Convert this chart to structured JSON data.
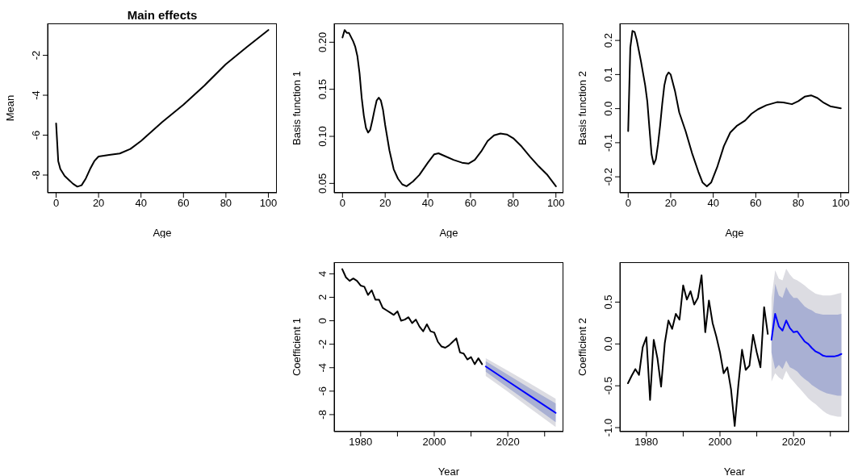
{
  "chart_data": [
    {
      "type": "line",
      "title": "Main effects",
      "xlabel": "Age",
      "ylabel": "Mean",
      "xlim": [
        -4,
        104
      ],
      "ylim": [
        -8.89,
        -0.4
      ],
      "xticks": [
        0,
        20,
        40,
        60,
        80,
        100
      ],
      "yticks": [
        -8,
        -6,
        -4,
        -2
      ],
      "x": [
        0,
        1,
        2,
        4,
        6,
        8,
        10,
        12,
        14,
        16,
        18,
        20,
        25,
        30,
        35,
        40,
        50,
        60,
        70,
        80,
        90,
        100
      ],
      "series": [
        {
          "color": "#000000",
          "values": [
            -5.41,
            -7.3,
            -7.7,
            -8.04,
            -8.24,
            -8.44,
            -8.58,
            -8.51,
            -8.17,
            -7.7,
            -7.3,
            -7.07,
            -6.99,
            -6.92,
            -6.69,
            -6.29,
            -5.34,
            -4.47,
            -3.5,
            -2.44,
            -1.57,
            -0.73
          ]
        }
      ]
    },
    {
      "type": "line",
      "xlabel": "Age",
      "ylabel": "Basis function 1",
      "xlim": [
        -3.9,
        103.5
      ],
      "ylim": [
        0.04,
        0.22
      ],
      "xticks": [
        0,
        20,
        40,
        60,
        80,
        100
      ],
      "yticks": [
        {
          "value": 0.05,
          "label": "0.05"
        },
        {
          "value": 0.1,
          "label": "0.10"
        },
        {
          "value": 0.15,
          "label": "0.15"
        },
        {
          "value": 0.2,
          "label": "0.20"
        }
      ],
      "x": [
        0,
        1,
        2,
        3,
        5,
        6,
        7,
        8,
        9,
        10,
        11,
        12,
        13,
        14,
        15,
        16,
        17,
        18,
        19,
        20,
        22,
        24,
        26,
        28,
        30,
        33,
        36,
        40,
        43,
        45,
        48,
        52,
        56,
        59,
        62,
        65,
        68,
        71,
        74,
        77,
        80,
        84,
        88,
        92,
        96,
        100
      ],
      "series": [
        {
          "color": "#000000",
          "values": [
            0.205,
            0.213,
            0.21,
            0.21,
            0.201,
            0.195,
            0.185,
            0.167,
            0.141,
            0.122,
            0.109,
            0.104,
            0.107,
            0.117,
            0.128,
            0.138,
            0.141,
            0.138,
            0.128,
            0.112,
            0.085,
            0.065,
            0.055,
            0.049,
            0.047,
            0.052,
            0.059,
            0.072,
            0.081,
            0.082,
            0.079,
            0.075,
            0.072,
            0.071,
            0.075,
            0.084,
            0.095,
            0.101,
            0.103,
            0.102,
            0.098,
            0.089,
            0.078,
            0.068,
            0.059,
            0.047
          ]
        }
      ]
    },
    {
      "type": "line",
      "xlabel": "Age",
      "ylabel": "Basis function 2",
      "xlim": [
        -3.9,
        103.9
      ],
      "ylim": [
        -0.247,
        0.25
      ],
      "xticks": [
        0,
        20,
        40,
        60,
        80,
        100
      ],
      "yticks": [
        {
          "value": -0.2,
          "label": "-0.2"
        },
        {
          "value": -0.1,
          "label": "-0.1"
        },
        {
          "value": 0,
          "label": "0.0"
        },
        {
          "value": 0.1,
          "label": "0.1"
        },
        {
          "value": 0.2,
          "label": "0.2"
        }
      ],
      "x": [
        0,
        1,
        2,
        3,
        4,
        6,
        8,
        9,
        10,
        11,
        12,
        13,
        14,
        15,
        16,
        17,
        18,
        19,
        20,
        22,
        24,
        27,
        30,
        33,
        35,
        37,
        39,
        42,
        45,
        48,
        51,
        55,
        58,
        61,
        65,
        70,
        73,
        77,
        80,
        83,
        86,
        89,
        92,
        95,
        100
      ],
      "series": [
        {
          "color": "#000000",
          "values": [
            -0.066,
            0.179,
            0.228,
            0.225,
            0.202,
            0.139,
            0.068,
            0.021,
            -0.058,
            -0.134,
            -0.163,
            -0.149,
            -0.106,
            -0.051,
            0.013,
            0.068,
            0.096,
            0.106,
            0.1,
            0.052,
            -0.011,
            -0.066,
            -0.13,
            -0.185,
            -0.217,
            -0.228,
            -0.217,
            -0.169,
            -0.11,
            -0.07,
            -0.051,
            -0.035,
            -0.015,
            -0.002,
            0.01,
            0.019,
            0.018,
            0.013,
            0.022,
            0.035,
            0.039,
            0.031,
            0.017,
            0.007,
            0.001
          ]
        }
      ]
    },
    {
      "type": "line",
      "xlabel": "Year",
      "ylabel": "Coefficient 1",
      "xlim": [
        1972.8,
        2035.1
      ],
      "ylim": [
        -9.45,
        4.99
      ],
      "xticks": [
        1980,
        {
          "value": 1990,
          "label": null
        },
        2000,
        {
          "value": 2010,
          "label": null
        },
        2020,
        {
          "value": 2030,
          "label": null
        }
      ],
      "yticks": [
        -8,
        -6,
        -4,
        -2,
        0,
        2,
        4
      ],
      "series": [
        {
          "color": "#000000",
          "x": [
            1975,
            1976,
            1977,
            1978,
            1979,
            1980,
            1981,
            1982,
            1983,
            1984,
            1985,
            1986,
            1987,
            1988,
            1989,
            1990,
            1991,
            1992,
            1993,
            1994,
            1995,
            1996,
            1997,
            1998,
            1999,
            2000,
            2001,
            2002,
            2003,
            2004,
            2005,
            2006,
            2007,
            2008,
            2009,
            2010,
            2011,
            2012,
            2013
          ],
          "values": [
            4.4,
            3.7,
            3.4,
            3.6,
            3.4,
            3.0,
            2.9,
            2.2,
            2.6,
            1.8,
            1.8,
            1.1,
            0.9,
            0.7,
            0.5,
            0.8,
            0.0,
            0.1,
            0.3,
            -0.2,
            0.1,
            -0.5,
            -0.9,
            -0.3,
            -0.9,
            -1.0,
            -1.8,
            -2.2,
            -2.3,
            -2.1,
            -1.8,
            -1.5,
            -2.7,
            -2.8,
            -3.3,
            -3.1,
            -3.7,
            -3.2,
            -3.7
          ]
        },
        {
          "color": "#dcdce2",
          "x": [
            2014,
            2020,
            2026,
            2033
          ],
          "values": [
            null,
            null,
            null,
            null
          ],
          "lower": [
            -4.7,
            -6.05,
            -7.45,
            -9.05
          ],
          "upper": [
            -3.2,
            -4.25,
            -5.35,
            -6.65
          ]
        },
        {
          "color": "#a9b0d3",
          "x": [
            2014,
            2020,
            2026,
            2033
          ],
          "values": [
            null,
            null,
            null,
            null
          ],
          "lower": [
            -4.35,
            -5.7,
            -7.05,
            -8.65
          ],
          "upper": [
            -3.45,
            -4.6,
            -5.75,
            -7.05
          ]
        },
        {
          "color": "#0000ff",
          "x": [
            2014,
            2020,
            2026,
            2033
          ],
          "values": [
            -3.9,
            -5.15,
            -6.4,
            -7.85
          ]
        }
      ]
    },
    {
      "type": "line",
      "xlabel": "Year",
      "ylabel": "Coefficient 2",
      "xlim": [
        1972.8,
        2035.1
      ],
      "ylim": [
        -1.048,
        0.977
      ],
      "xticks": [
        1980,
        {
          "value": 1990,
          "label": null
        },
        2000,
        {
          "value": 2010,
          "label": null
        },
        2020,
        {
          "value": 2030,
          "label": null
        }
      ],
      "yticks": [
        {
          "value": -1,
          "label": "-1.0"
        },
        {
          "value": -0.5,
          "label": "-0.5"
        },
        {
          "value": 0,
          "label": "0.0"
        },
        {
          "value": 0.5,
          "label": "0.5"
        }
      ],
      "series": [
        {
          "color": "#000000",
          "x": [
            1975,
            1976,
            1977,
            1978,
            1979,
            1980,
            1981,
            1982,
            1983,
            1984,
            1985,
            1986,
            1987,
            1988,
            1989,
            1990,
            1991,
            1992,
            1993,
            1994,
            1995,
            1996,
            1997,
            1998,
            1999,
            2000,
            2001,
            2002,
            2003,
            2004,
            2005,
            2006,
            2007,
            2008,
            2009,
            2010,
            2011,
            2012,
            2013
          ],
          "values": [
            -0.47,
            -0.38,
            -0.3,
            -0.37,
            -0.04,
            0.08,
            -0.67,
            0.05,
            -0.17,
            -0.51,
            0.01,
            0.28,
            0.18,
            0.36,
            0.29,
            0.7,
            0.53,
            0.63,
            0.47,
            0.55,
            0.82,
            0.14,
            0.52,
            0.25,
            0.09,
            -0.1,
            -0.35,
            -0.28,
            -0.54,
            -0.98,
            -0.49,
            -0.07,
            -0.31,
            -0.26,
            0.11,
            -0.1,
            -0.28,
            0.44,
            0.12
          ]
        },
        {
          "color": "#dcdce2",
          "x": [
            2014,
            2015,
            2016,
            2017,
            2018,
            2019,
            2020,
            2021,
            2022,
            2023,
            2024,
            2025,
            2026,
            2027,
            2028,
            2029,
            2030,
            2031,
            2032,
            2033
          ],
          "values": [
            null,
            null,
            null,
            null,
            null,
            null,
            null,
            null,
            null,
            null,
            null,
            null,
            null,
            null,
            null,
            null,
            null,
            null,
            null,
            null
          ],
          "lower": [
            -0.45,
            -0.35,
            -0.4,
            -0.43,
            -0.32,
            -0.4,
            -0.45,
            -0.5,
            -0.55,
            -0.6,
            -0.65,
            -0.69,
            -0.72,
            -0.76,
            -0.8,
            -0.83,
            -0.85,
            -0.86,
            -0.87,
            -0.87
          ],
          "upper": [
            0.55,
            0.88,
            0.78,
            0.76,
            0.9,
            0.83,
            0.78,
            0.76,
            0.73,
            0.7,
            0.66,
            0.63,
            0.6,
            0.59,
            0.58,
            0.58,
            0.58,
            0.59,
            0.6,
            0.61
          ]
        },
        {
          "color": "#a9b0d3",
          "x": [
            2014,
            2015,
            2016,
            2017,
            2018,
            2019,
            2020,
            2021,
            2022,
            2023,
            2024,
            2025,
            2026,
            2027,
            2028,
            2029,
            2030,
            2031,
            2032,
            2033
          ],
          "values": [
            null,
            null,
            null,
            null,
            null,
            null,
            null,
            null,
            null,
            null,
            null,
            null,
            null,
            null,
            null,
            null,
            null,
            null,
            null,
            null
          ],
          "lower": [
            -0.1,
            -0.3,
            -0.25,
            -0.3,
            -0.2,
            -0.28,
            -0.3,
            -0.33,
            -0.38,
            -0.42,
            -0.45,
            -0.49,
            -0.52,
            -0.55,
            -0.57,
            -0.59,
            -0.6,
            -0.61,
            -0.62,
            -0.62
          ],
          "upper": [
            0.15,
            0.72,
            0.58,
            0.55,
            0.68,
            0.6,
            0.55,
            0.55,
            0.5,
            0.45,
            0.42,
            0.4,
            0.37,
            0.36,
            0.35,
            0.35,
            0.35,
            0.35,
            0.35,
            0.36
          ]
        },
        {
          "color": "#0000ff",
          "x": [
            2014,
            2015,
            2016,
            2017,
            2018,
            2019,
            2020,
            2021,
            2022,
            2023,
            2024,
            2025,
            2026,
            2027,
            2028,
            2029,
            2030,
            2031,
            2032,
            2033
          ],
          "values": [
            0.05,
            0.36,
            0.21,
            0.16,
            0.28,
            0.19,
            0.14,
            0.15,
            0.09,
            0.03,
            0.0,
            -0.05,
            -0.09,
            -0.11,
            -0.14,
            -0.15,
            -0.15,
            -0.15,
            -0.14,
            -0.12
          ]
        }
      ]
    }
  ]
}
